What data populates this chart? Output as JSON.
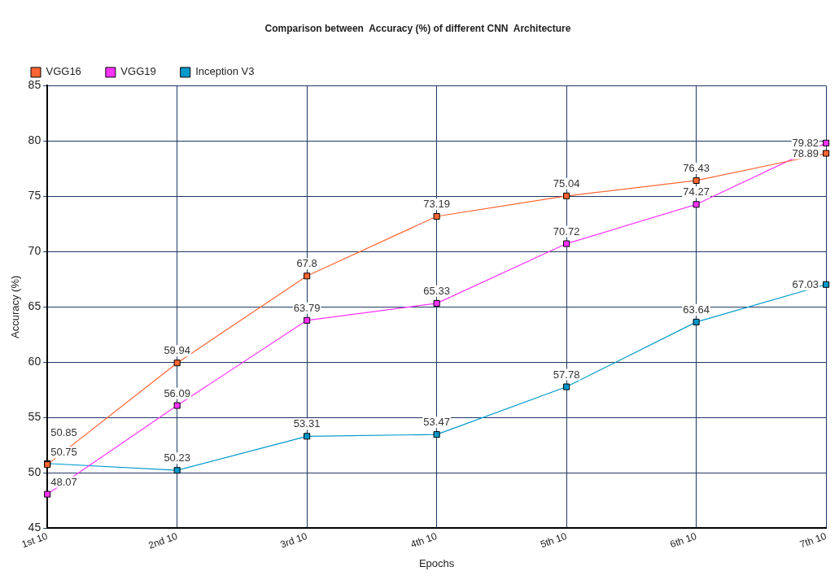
{
  "chart_data": {
    "type": "line",
    "title": "Comparison between  Accuracy (%) of different CNN  Architecture",
    "xlabel": "Epochs",
    "ylabel": "Accuracy (%)",
    "categories": [
      "1st 10",
      "2nd 10",
      "3rd 10",
      "4th 10",
      "5th 10",
      "6th 10",
      "7th 10"
    ],
    "series": [
      {
        "name": "VGG16",
        "color": "#ff6633",
        "values": [
          50.75,
          59.94,
          67.8,
          73.19,
          75.04,
          76.43,
          78.89
        ]
      },
      {
        "name": "VGG19",
        "color": "#ff33ff",
        "values": [
          48.07,
          56.09,
          63.79,
          65.33,
          70.72,
          74.27,
          79.82
        ]
      },
      {
        "name": "Inception V3",
        "color": "#0099cc",
        "values": [
          50.85,
          50.23,
          53.31,
          53.47,
          57.78,
          63.64,
          67.03
        ]
      }
    ],
    "ylim": [
      45,
      85
    ],
    "yticks": [
      45,
      50,
      55,
      60,
      65,
      70,
      75,
      80,
      85
    ],
    "grid": true,
    "legend": "top left",
    "marker": "square",
    "data_labels": true
  }
}
